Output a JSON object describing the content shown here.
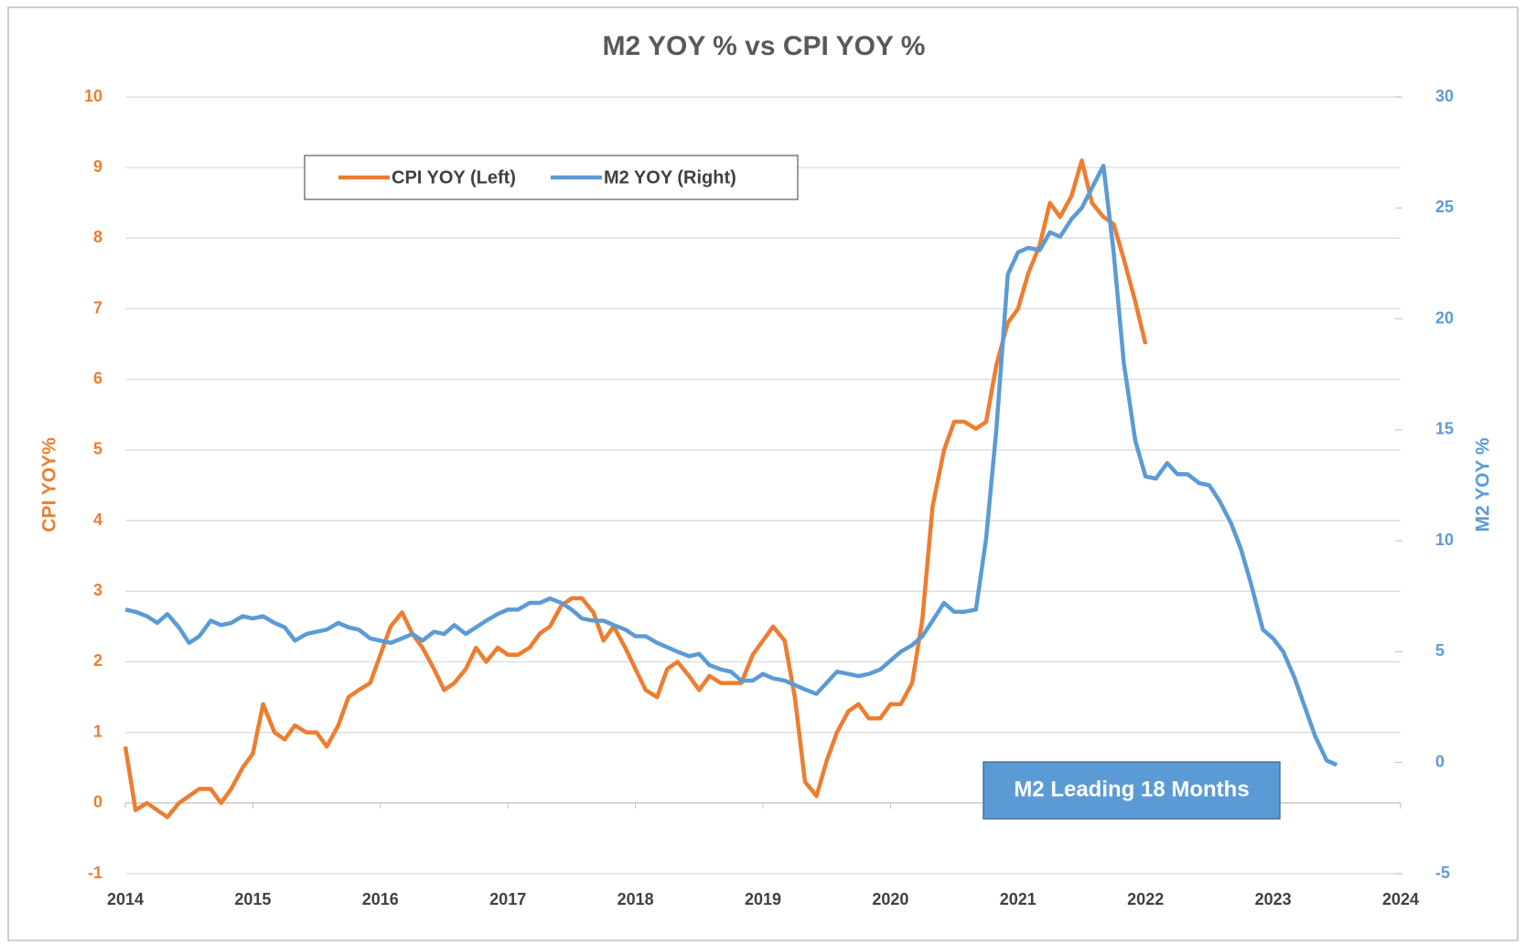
{
  "chart_data": {
    "type": "line",
    "title": "M2 YOY % vs CPI YOY %",
    "y_label": "CPI YOY%",
    "y2_label": "M2 YOY %",
    "annotation": "M2 Leading 18 Months",
    "xlim": [
      2014,
      2024
    ],
    "xticks": [
      2014,
      2015,
      2016,
      2017,
      2018,
      2019,
      2020,
      2021,
      2022,
      2023,
      2024
    ],
    "ylim": [
      -1,
      10
    ],
    "yticks": [
      -1,
      0,
      1,
      2,
      3,
      4,
      5,
      6,
      7,
      8,
      9,
      10
    ],
    "y2lim": [
      -5,
      30
    ],
    "y2ticks": [
      -5,
      0,
      5,
      10,
      15,
      20,
      25,
      30
    ],
    "grid": true,
    "legend": "top-left",
    "x": [
      2014,
      2014.08,
      2014.17,
      2014.25,
      2014.33,
      2014.42,
      2014.5,
      2014.58,
      2014.67,
      2014.75,
      2014.83,
      2014.92,
      2015,
      2015.08,
      2015.17,
      2015.25,
      2015.33,
      2015.42,
      2015.5,
      2015.58,
      2015.67,
      2015.75,
      2015.83,
      2015.92,
      2016,
      2016.08,
      2016.17,
      2016.25,
      2016.33,
      2016.42,
      2016.5,
      2016.58,
      2016.67,
      2016.75,
      2016.83,
      2016.92,
      2017,
      2017.08,
      2017.17,
      2017.25,
      2017.33,
      2017.42,
      2017.5,
      2017.58,
      2017.67,
      2017.75,
      2017.83,
      2017.92,
      2018,
      2018.08,
      2018.17,
      2018.25,
      2018.33,
      2018.42,
      2018.5,
      2018.58,
      2018.67,
      2018.75,
      2018.83,
      2018.92,
      2019,
      2019.08,
      2019.17,
      2019.25,
      2019.33,
      2019.42,
      2019.5,
      2019.58,
      2019.67,
      2019.75,
      2019.83,
      2019.92,
      2020,
      2020.08,
      2020.17,
      2020.25,
      2020.33,
      2020.42,
      2020.5,
      2020.58,
      2020.67,
      2020.75,
      2020.83,
      2020.92,
      2021,
      2021.08,
      2021.17,
      2021.25,
      2021.33,
      2021.42,
      2021.5,
      2021.58,
      2021.67,
      2021.75,
      2021.83,
      2021.92,
      2022,
      2022.08,
      2022.17,
      2022.25,
      2022.33,
      2022.42,
      2022.5,
      2022.58,
      2022.67,
      2022.75,
      2022.83,
      2022.92,
      2023,
      2023.08,
      2023.17,
      2023.25,
      2023.33,
      2023.42,
      2023.5
    ],
    "series": [
      {
        "name": "CPI YOY (Left)",
        "color": "#ED7D31",
        "axis": "y",
        "values": [
          0.8,
          -0.1,
          0.0,
          -0.1,
          -0.2,
          0.0,
          0.1,
          0.2,
          0.2,
          0.0,
          0.2,
          0.5,
          0.7,
          1.4,
          1.0,
          0.9,
          1.1,
          1.0,
          1.0,
          0.8,
          1.1,
          1.5,
          1.6,
          1.7,
          2.1,
          2.5,
          2.7,
          2.4,
          2.2,
          1.9,
          1.6,
          1.7,
          1.9,
          2.2,
          2.0,
          2.2,
          2.1,
          2.1,
          2.2,
          2.4,
          2.5,
          2.8,
          2.9,
          2.9,
          2.7,
          2.3,
          2.5,
          2.2,
          1.9,
          1.6,
          1.5,
          1.9,
          2.0,
          1.8,
          1.6,
          1.8,
          1.7,
          1.7,
          1.7,
          2.1,
          2.3,
          2.5,
          2.3,
          1.5,
          0.3,
          0.1,
          0.6,
          1.0,
          1.3,
          1.4,
          1.2,
          1.2,
          1.4,
          1.4,
          1.7,
          2.6,
          4.2,
          5.0,
          5.4,
          5.4,
          5.3,
          5.4,
          6.2,
          6.8,
          7.0,
          7.5,
          7.9,
          8.5,
          8.3,
          8.6,
          9.1,
          8.5,
          8.3,
          8.2,
          7.7,
          7.1,
          6.5,
          null,
          null,
          null,
          null,
          null,
          null,
          null,
          null,
          null,
          null,
          null,
          null,
          null,
          null,
          null,
          null,
          null,
          null
        ]
      },
      {
        "name": "M2 YOY (Right)",
        "color": "#5B9BD5",
        "axis": "y2",
        "values": [
          6.9,
          6.8,
          6.6,
          6.3,
          6.7,
          6.1,
          5.4,
          5.7,
          6.4,
          6.2,
          6.3,
          6.6,
          6.5,
          6.6,
          6.3,
          6.1,
          5.5,
          5.8,
          5.9,
          6.0,
          6.3,
          6.1,
          6.0,
          5.6,
          5.5,
          5.4,
          5.6,
          5.8,
          5.5,
          5.9,
          5.8,
          6.2,
          5.8,
          6.1,
          6.4,
          6.7,
          6.9,
          6.9,
          7.2,
          7.2,
          7.4,
          7.2,
          6.9,
          6.5,
          6.4,
          6.4,
          6.2,
          6.0,
          5.7,
          5.7,
          5.4,
          5.2,
          5.0,
          4.8,
          4.9,
          4.4,
          4.2,
          4.1,
          3.7,
          3.7,
          4.0,
          3.8,
          3.7,
          3.5,
          3.3,
          3.1,
          3.6,
          4.1,
          4.0,
          3.9,
          4.0,
          4.2,
          4.6,
          5.0,
          5.3,
          5.7,
          6.4,
          7.2,
          6.8,
          6.8,
          6.9,
          10.1,
          15.0,
          22.0,
          23.0,
          23.2,
          23.1,
          23.9,
          23.7,
          24.5,
          25.0,
          25.9,
          26.9,
          23.0,
          18.0,
          14.5,
          12.9,
          12.8,
          13.5,
          13.0,
          13.0,
          12.6,
          12.5,
          11.8,
          10.8,
          9.6,
          8.0,
          6.0,
          5.6,
          5.0,
          3.8,
          2.5,
          1.2,
          0.1,
          -0.1
        ]
      }
    ]
  }
}
